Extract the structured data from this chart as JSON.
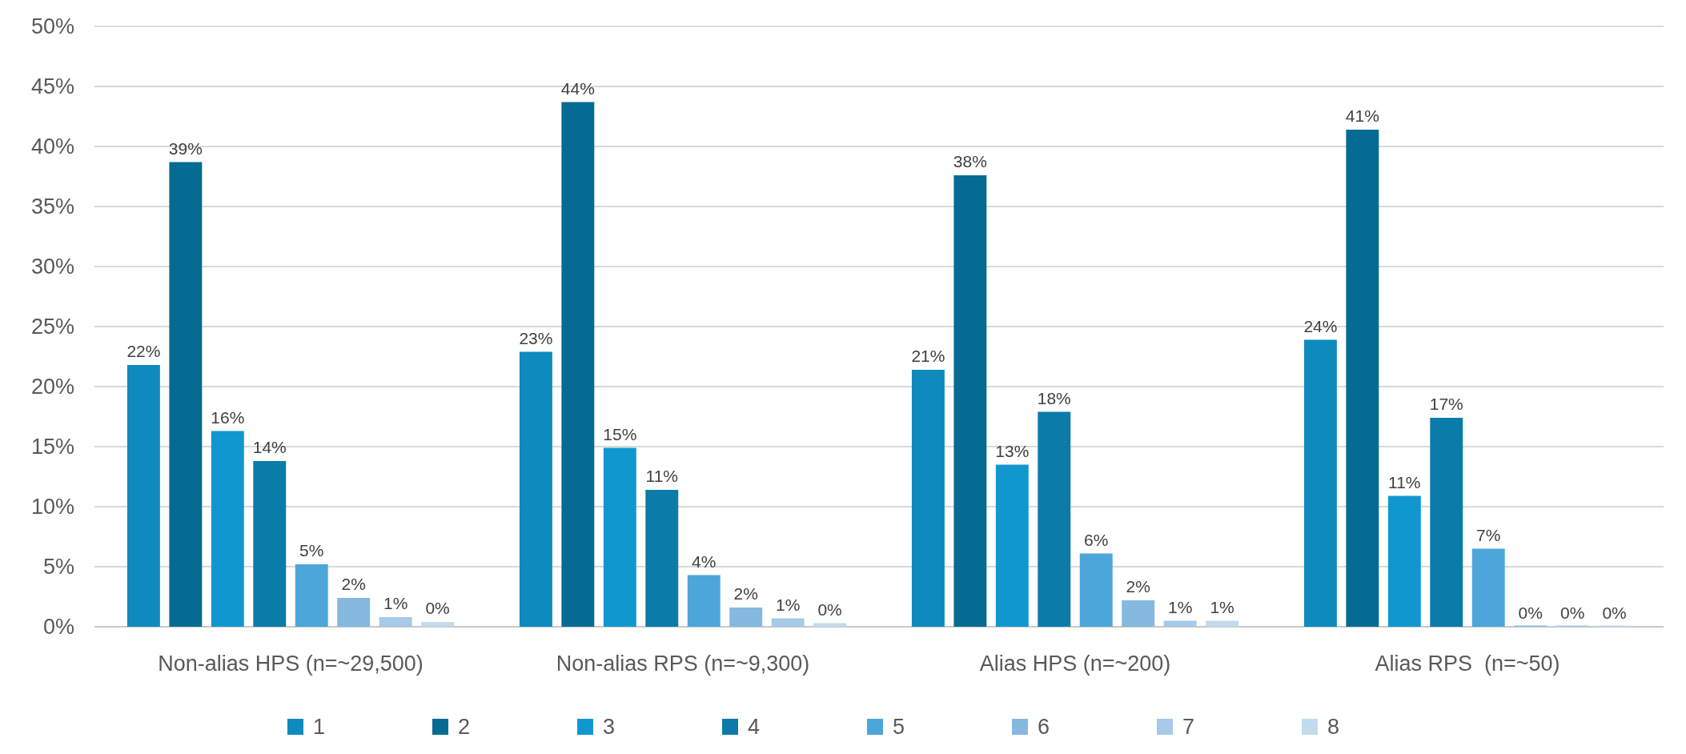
{
  "chart_data": {
    "type": "bar",
    "categories": [
      "Non-alias HPS (n=~29,500)",
      "Non-alias RPS (n=~9,300)",
      "Alias HPS (n=~200)",
      "Alias RPS  (n=~50)"
    ],
    "series": [
      {
        "name": "1",
        "color": "#0e8abd",
        "values": [
          21.8,
          22.9,
          21.4,
          23.9
        ],
        "value_labels": [
          "22%",
          "23%",
          "21%",
          "24%"
        ]
      },
      {
        "name": "2",
        "color": "#066b93",
        "values": [
          38.7,
          43.7,
          37.6,
          41.4
        ],
        "value_labels": [
          "39%",
          "44%",
          "38%",
          "41%"
        ]
      },
      {
        "name": "3",
        "color": "#1197cf",
        "values": [
          16.3,
          14.9,
          13.5,
          10.9
        ],
        "value_labels": [
          "16%",
          "15%",
          "13%",
          "11%"
        ]
      },
      {
        "name": "4",
        "color": "#0b7ba9",
        "values": [
          13.8,
          11.4,
          17.9,
          17.4
        ],
        "value_labels": [
          "14%",
          "11%",
          "18%",
          "17%"
        ]
      },
      {
        "name": "5",
        "color": "#4ca6da",
        "values": [
          5.2,
          4.3,
          6.1,
          6.5
        ],
        "value_labels": [
          "5%",
          "4%",
          "6%",
          "7%"
        ]
      },
      {
        "name": "6",
        "color": "#85b9e0",
        "values": [
          2.4,
          1.6,
          2.2,
          0
        ],
        "value_labels": [
          "2%",
          "2%",
          "2%",
          "0%"
        ]
      },
      {
        "name": "7",
        "color": "#a6cae8",
        "values": [
          0.8,
          0.7,
          0.5,
          0
        ],
        "value_labels": [
          "1%",
          "1%",
          "1%",
          "0%"
        ]
      },
      {
        "name": "8",
        "color": "#c3daef",
        "values": [
          0.4,
          0.3,
          0.5,
          0
        ],
        "value_labels": [
          "0%",
          "0%",
          "1%",
          "0%"
        ]
      }
    ],
    "ylim": [
      0,
      50
    ],
    "yticks": [
      {
        "value": 0,
        "label": "0%"
      },
      {
        "value": 5,
        "label": "5%"
      },
      {
        "value": 10,
        "label": "10%"
      },
      {
        "value": 15,
        "label": "15%"
      },
      {
        "value": 20,
        "label": "20%"
      },
      {
        "value": 25,
        "label": "25%"
      },
      {
        "value": 30,
        "label": "30%"
      },
      {
        "value": 35,
        "label": "35%"
      },
      {
        "value": 40,
        "label": "40%"
      },
      {
        "value": 45,
        "label": "45%"
      },
      {
        "value": 50,
        "label": "50%"
      }
    ],
    "grid": "y",
    "legend": "bottom"
  }
}
